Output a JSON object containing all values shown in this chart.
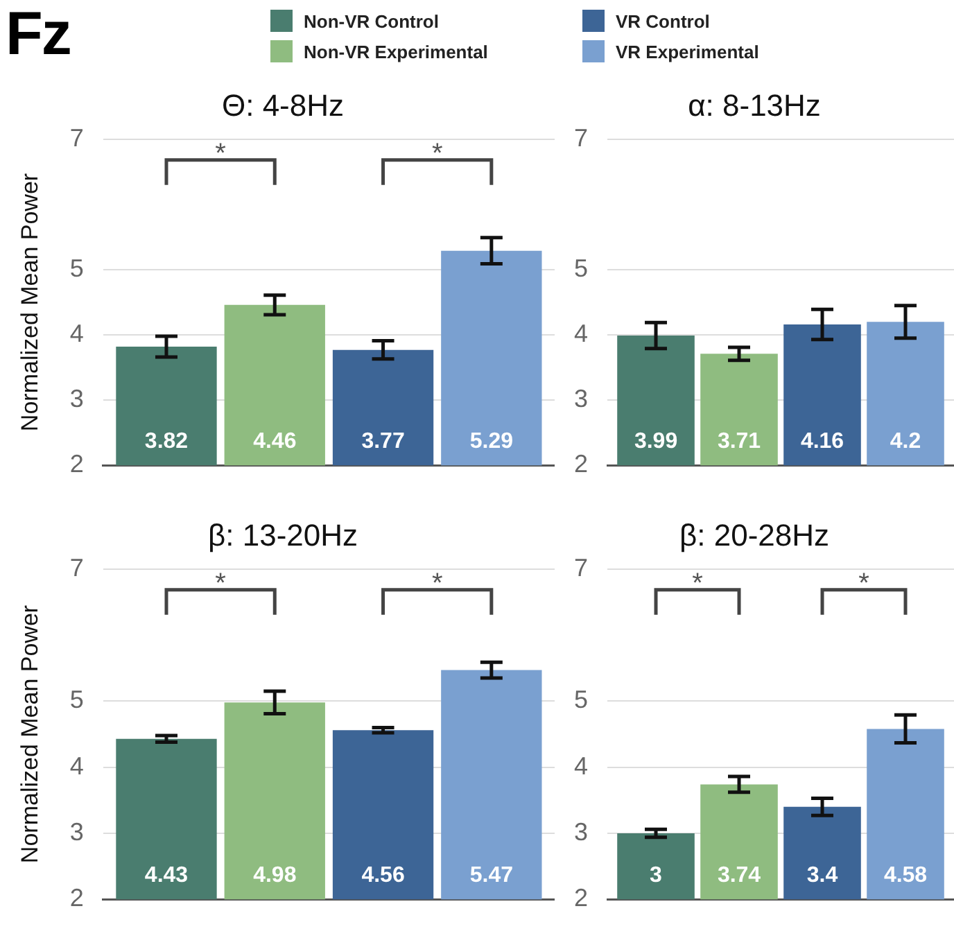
{
  "chart_data": [
    {
      "type": "bar",
      "title": "Θ: 4-8Hz",
      "subtitle": "Fz",
      "ylabel": "Normalized Mean Power",
      "categories": [
        null
      ],
      "legend": "top",
      "grid": "y",
      "ylim": [
        2,
        7
      ],
      "yticks": [
        2,
        3,
        4,
        5,
        7
      ],
      "annotations": [
        "*",
        "*"
      ],
      "data_labels": true,
      "series": [
        {
          "name": "Non-VR Control",
          "color": "#4a7d6f",
          "values": [
            3.82
          ],
          "errors": [
            0.16
          ]
        },
        {
          "name": "Non-VR Experimental",
          "color": "#8fbc80",
          "values": [
            4.46
          ],
          "errors": [
            0.15
          ]
        },
        {
          "name": "VR Control",
          "color": "#3d6596",
          "values": [
            3.77
          ],
          "errors": [
            0.14
          ]
        },
        {
          "name": "VR Experimental",
          "color": "#7aa0d0",
          "values": [
            5.29
          ],
          "errors": [
            0.2
          ]
        }
      ]
    },
    {
      "type": "bar",
      "title": "α: 8-13Hz",
      "categories": [
        null
      ],
      "grid": "y",
      "ylim": [
        2,
        7
      ],
      "yticks": [
        2,
        3,
        4,
        5,
        7
      ],
      "data_labels": true,
      "series": [
        {
          "color": "#4a7d6f",
          "values": [
            3.99
          ],
          "errors": [
            0.2
          ]
        },
        {
          "color": "#8fbc80",
          "values": [
            3.71
          ],
          "errors": [
            0.1
          ]
        },
        {
          "color": "#3d6596",
          "values": [
            4.16
          ],
          "errors": [
            0.23
          ]
        },
        {
          "color": "#7aa0d0",
          "values": [
            4.2
          ],
          "errors": [
            0.25
          ]
        }
      ]
    },
    {
      "type": "bar",
      "title": "β: 13-20Hz",
      "ylabel": "Normalized Mean Power",
      "categories": [
        null
      ],
      "grid": "y",
      "ylim": [
        2,
        7
      ],
      "yticks": [
        2,
        3,
        4,
        5,
        7
      ],
      "annotations": [
        "*",
        "*"
      ],
      "data_labels": true,
      "series": [
        {
          "color": "#4a7d6f",
          "values": [
            4.43
          ],
          "errors": [
            0.05
          ]
        },
        {
          "color": "#8fbc80",
          "values": [
            4.98
          ],
          "errors": [
            0.17
          ]
        },
        {
          "color": "#3d6596",
          "values": [
            4.56
          ],
          "errors": [
            0.04
          ]
        },
        {
          "color": "#7aa0d0",
          "values": [
            5.47
          ],
          "errors": [
            0.12
          ]
        }
      ]
    },
    {
      "type": "bar",
      "title": "β: 20-28Hz",
      "categories": [
        null
      ],
      "grid": "y",
      "ylim": [
        2,
        7
      ],
      "yticks": [
        2,
        3,
        4,
        5,
        7
      ],
      "annotations": [
        "*",
        "*"
      ],
      "data_labels": true,
      "series": [
        {
          "color": "#4a7d6f",
          "values": [
            3
          ],
          "errors": [
            0.06
          ]
        },
        {
          "color": "#8fbc80",
          "values": [
            3.74
          ],
          "errors": [
            0.12
          ]
        },
        {
          "color": "#3d6596",
          "values": [
            3.4
          ],
          "errors": [
            0.13
          ]
        },
        {
          "color": "#7aa0d0",
          "values": [
            4.58
          ],
          "errors": [
            0.21
          ]
        }
      ]
    }
  ]
}
